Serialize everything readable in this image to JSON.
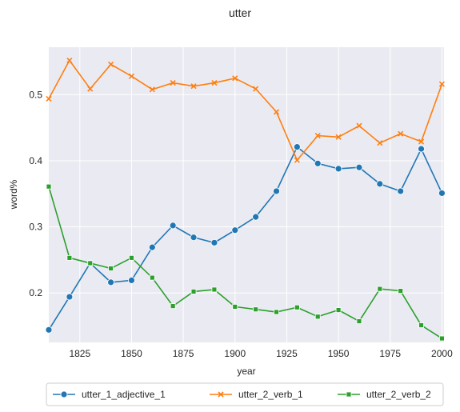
{
  "chart_data": {
    "type": "line",
    "title": "utter",
    "xlabel": "year",
    "ylabel": "word%",
    "xlim": [
      1810,
      2001
    ],
    "ylim": [
      0.125,
      0.572
    ],
    "xticks": [
      1825,
      1850,
      1875,
      1900,
      1925,
      1950,
      1975,
      2000
    ],
    "yticks": [
      0.2,
      0.3,
      0.4,
      0.5
    ],
    "grid": true,
    "legend_position": "bottom-center",
    "x": [
      1810,
      1820,
      1830,
      1840,
      1850,
      1860,
      1870,
      1880,
      1890,
      1900,
      1910,
      1920,
      1930,
      1940,
      1950,
      1960,
      1970,
      1980,
      1990,
      2000
    ],
    "series": [
      {
        "name": "utter_1_adjective_1",
        "color": "#1f77b4",
        "marker": "circle",
        "values": [
          0.144,
          0.194,
          0.245,
          0.216,
          0.219,
          0.269,
          0.302,
          0.284,
          0.276,
          0.295,
          0.315,
          0.354,
          0.421,
          0.396,
          0.388,
          0.39,
          0.365,
          0.354,
          0.418,
          0.351
        ]
      },
      {
        "name": "utter_2_verb_1",
        "color": "#ff7f0e",
        "marker": "x",
        "values": [
          0.494,
          0.552,
          0.509,
          0.546,
          0.528,
          0.508,
          0.518,
          0.513,
          0.518,
          0.525,
          0.509,
          0.474,
          0.401,
          0.438,
          0.436,
          0.453,
          0.427,
          0.441,
          0.429,
          0.516
        ]
      },
      {
        "name": "utter_2_verb_2",
        "color": "#2ca02c",
        "marker": "square",
        "values": [
          0.361,
          0.253,
          0.245,
          0.237,
          0.253,
          0.223,
          0.18,
          0.202,
          0.205,
          0.179,
          0.175,
          0.171,
          0.178,
          0.164,
          0.174,
          0.157,
          0.206,
          0.203,
          0.151,
          0.131
        ]
      }
    ]
  }
}
